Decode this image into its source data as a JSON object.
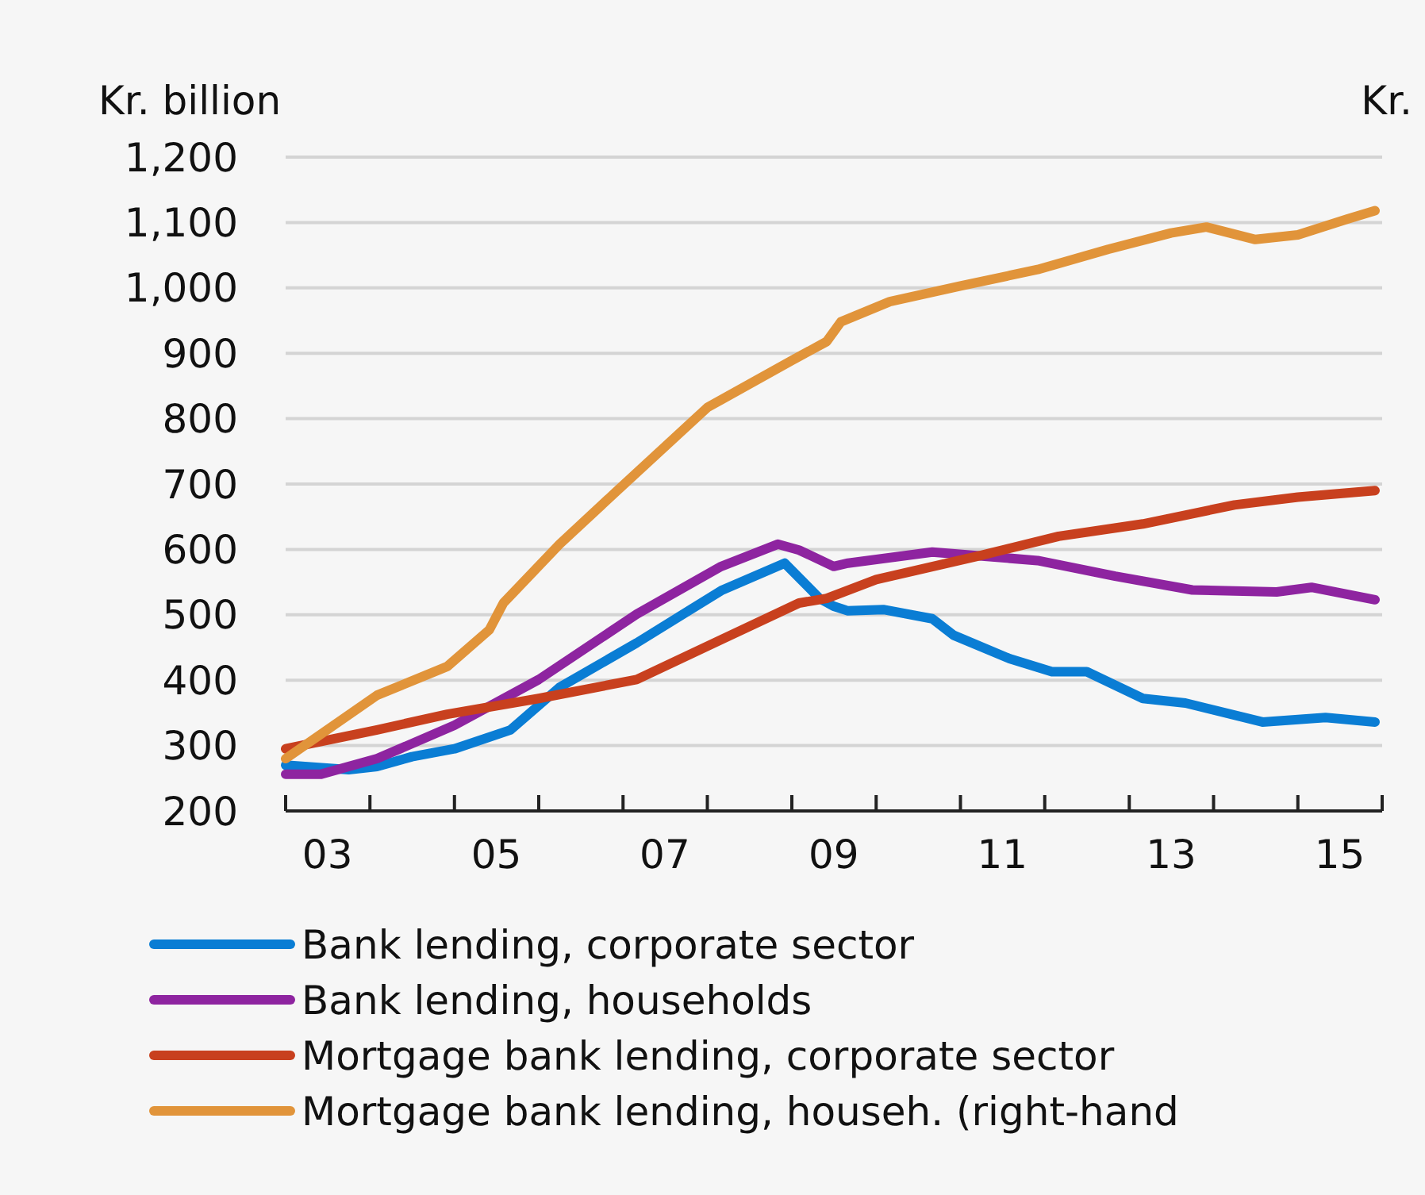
{
  "chart_data": {
    "type": "line",
    "ylabel": "Kr. billion",
    "y2label": "Kr.",
    "xlim": [
      "2003-01",
      "2016-01"
    ],
    "xticks": [
      {
        "value": "2003-01",
        "label": null
      },
      {
        "value": "2003-07",
        "label": "03"
      },
      {
        "value": "2004-01",
        "label": null
      },
      {
        "value": "2005-01",
        "label": null
      },
      {
        "value": "2005-07",
        "label": "05"
      },
      {
        "value": "2006-01",
        "label": null
      },
      {
        "value": "2007-01",
        "label": null
      },
      {
        "value": "2007-07",
        "label": "07"
      },
      {
        "value": "2008-01",
        "label": null
      },
      {
        "value": "2009-01",
        "label": null
      },
      {
        "value": "2009-07",
        "label": "09"
      },
      {
        "value": "2010-01",
        "label": null
      },
      {
        "value": "2011-01",
        "label": null
      },
      {
        "value": "2011-07",
        "label": "11"
      },
      {
        "value": "2012-01",
        "label": null
      },
      {
        "value": "2013-01",
        "label": null
      },
      {
        "value": "2013-07",
        "label": "13"
      },
      {
        "value": "2014-01",
        "label": null
      },
      {
        "value": "2015-01",
        "label": null
      },
      {
        "value": "2015-07",
        "label": "15"
      },
      {
        "value": "2016-01",
        "label": null
      }
    ],
    "ylim": [
      200,
      1200
    ],
    "yticks": [
      {
        "value": 200,
        "label": "200"
      },
      {
        "value": 300,
        "label": "300"
      },
      {
        "value": 400,
        "label": "400"
      },
      {
        "value": 500,
        "label": "500"
      },
      {
        "value": 600,
        "label": "600"
      },
      {
        "value": 700,
        "label": "700"
      },
      {
        "value": 800,
        "label": "800"
      },
      {
        "value": 900,
        "label": "900"
      },
      {
        "value": 1000,
        "label": "1,000"
      },
      {
        "value": 1100,
        "label": "1,100"
      },
      {
        "value": 1200,
        "label": "1,200"
      }
    ],
    "grid": "y",
    "legend": "bottom",
    "line_style": "solid",
    "marker": "none",
    "series": [
      {
        "name": "Bank lending, corporate sector",
        "color": "#0a7dd4",
        "x": [
          "2003-01",
          "2003-10",
          "2004-02",
          "2004-07",
          "2005-01",
          "2005-09",
          "2006-04",
          "2007-03",
          "2008-03",
          "2008-12",
          "2009-05",
          "2009-07",
          "2009-09",
          "2010-02",
          "2010-09",
          "2010-12",
          "2011-08",
          "2012-02",
          "2012-07",
          "2013-03",
          "2013-09",
          "2014-08",
          "2015-05",
          "2015-12"
        ],
        "values": [
          270,
          263,
          268,
          283,
          295,
          324,
          389,
          457,
          537,
          579,
          525,
          513,
          506,
          508,
          494,
          469,
          433,
          413,
          413,
          372,
          365,
          336,
          343,
          336
        ]
      },
      {
        "name": "Bank lending, households",
        "color": "#8e24a0",
        "x": [
          "2003-01",
          "2003-06",
          "2004-02",
          "2005-01",
          "2006-01",
          "2007-03",
          "2008-03",
          "2008-11",
          "2009-02",
          "2009-07",
          "2009-09",
          "2010-09",
          "2011-12",
          "2012-11",
          "2013-10",
          "2014-10",
          "2015-03",
          "2015-12"
        ],
        "values": [
          256,
          256,
          280,
          331,
          401,
          501,
          574,
          608,
          599,
          574,
          579,
          596,
          583,
          559,
          538,
          535,
          542,
          523
        ]
      },
      {
        "name": "Mortgage bank lending, corporate sector",
        "color": "#c8401e",
        "x": [
          "2003-01",
          "2004-02",
          "2004-12",
          "2006-01",
          "2007-03",
          "2008-03",
          "2009-02",
          "2009-06",
          "2010-01",
          "2011-04",
          "2012-03",
          "2013-03",
          "2014-04",
          "2015-01",
          "2015-12"
        ],
        "values": [
          295,
          324,
          348,
          372,
          401,
          462,
          518,
          525,
          554,
          591,
          620,
          639,
          668,
          680,
          690
        ]
      },
      {
        "name": "Mortgage bank lending, househ. (right-hand",
        "color": "#e1943a",
        "x": [
          "2003-01",
          "2004-02",
          "2004-12",
          "2005-06",
          "2005-08",
          "2006-04",
          "2006-12",
          "2008-01",
          "2009-01",
          "2009-06",
          "2009-08",
          "2010-03",
          "2011-01",
          "2011-12",
          "2012-10",
          "2013-07",
          "2013-12",
          "2014-07",
          "2015-01",
          "2015-08",
          "2015-12"
        ],
        "values": [
          280,
          377,
          421,
          477,
          518,
          608,
          688,
          817,
          889,
          918,
          948,
          979,
          1003,
          1028,
          1059,
          1084,
          1093,
          1074,
          1081,
          1105,
          1118
        ]
      }
    ]
  }
}
